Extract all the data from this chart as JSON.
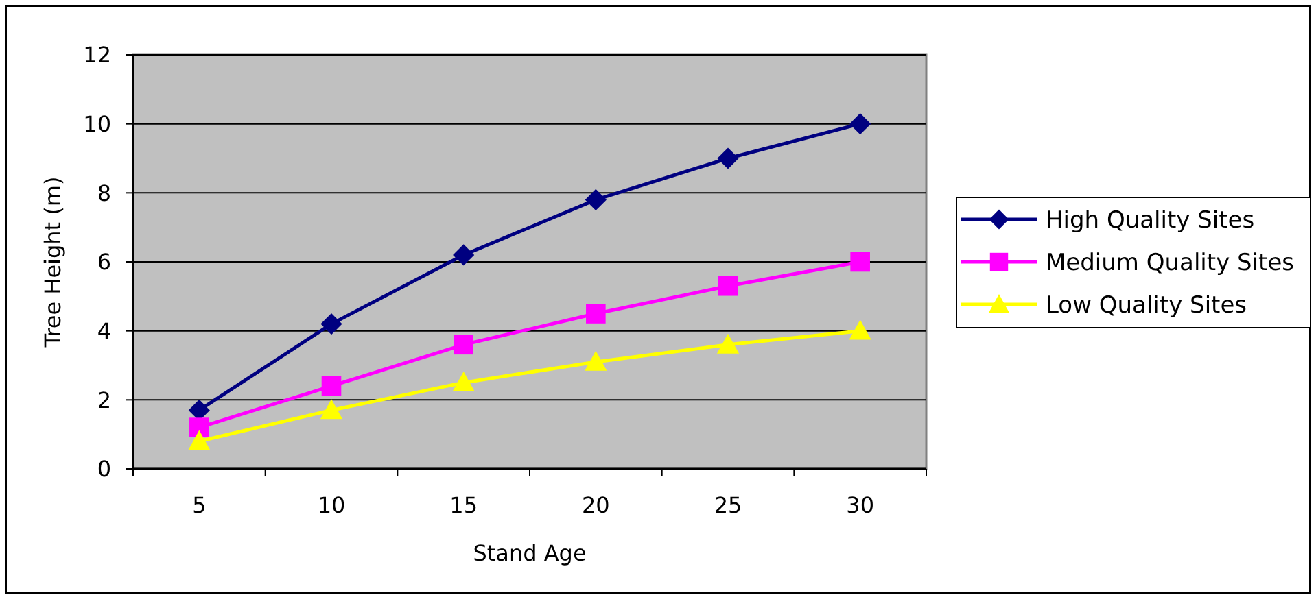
{
  "chart_data": {
    "type": "line",
    "xlabel": "Stand Age",
    "ylabel": "Tree Height (m)",
    "categories": [
      "5",
      "10",
      "15",
      "20",
      "25",
      "30"
    ],
    "series": [
      {
        "name": "High Quality Sites",
        "color": "#000080",
        "marker": "diamond",
        "values": [
          1.7,
          4.2,
          6.2,
          7.8,
          9.0,
          10.0
        ]
      },
      {
        "name": "Medium Quality Sites",
        "color": "#ff00ff",
        "marker": "square",
        "values": [
          1.2,
          2.4,
          3.6,
          4.5,
          5.3,
          6.0
        ]
      },
      {
        "name": "Low Quality Sites",
        "color": "#ffff00",
        "marker": "triangle",
        "values": [
          0.8,
          1.7,
          2.5,
          3.1,
          3.6,
          4.0
        ]
      }
    ],
    "ylim": [
      0,
      12
    ],
    "yticks": [
      0,
      2,
      4,
      6,
      8,
      10,
      12
    ],
    "grid": "y",
    "legend": "right",
    "line_style": "solid"
  }
}
